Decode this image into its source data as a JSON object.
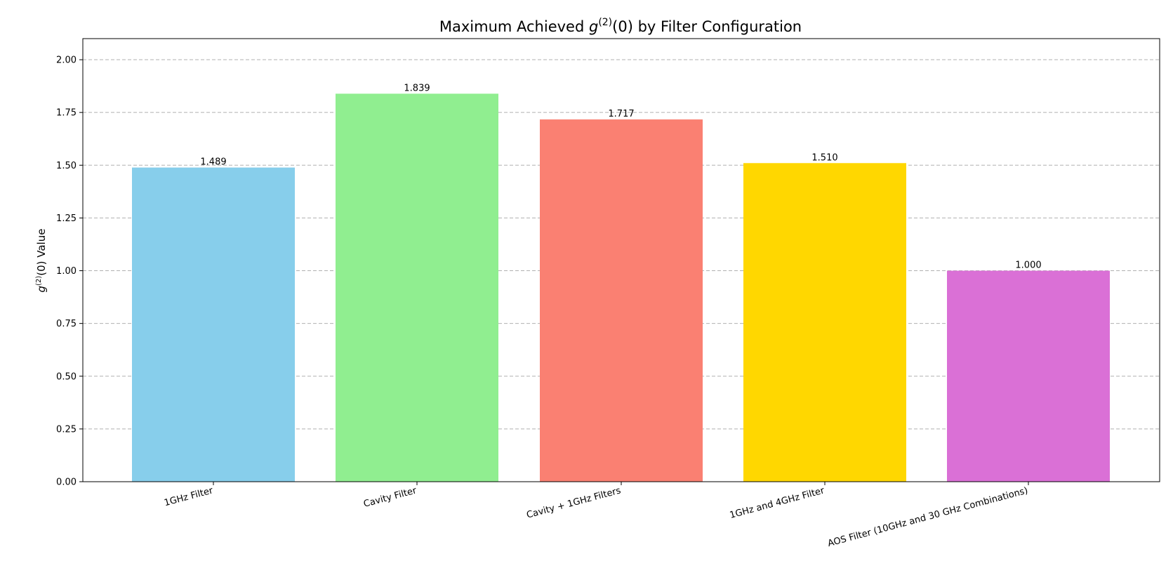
{
  "chart_data": {
    "type": "bar",
    "title": "Maximum Achieved g(2)(0) by Filter Configuration",
    "title_parts": {
      "before": "Maximum Achieved ",
      "sym": "g",
      "sup": "(2)",
      "after": "(0) by Filter Configuration"
    },
    "ylabel": "g(2)(0) Value",
    "ylabel_parts": {
      "sym": "g",
      "sup": "(2)",
      "after": "(0) Value"
    },
    "xlabel": "",
    "categories": [
      "1GHz Filter",
      "Cavity Filter",
      "Cavity + 1GHz Filters",
      "1GHz and 4GHz Filter",
      "AOS Filter (10GHz and 30 GHz Combinations)"
    ],
    "values": [
      1.489,
      1.839,
      1.717,
      1.51,
      1.0
    ],
    "value_labels": [
      "1.489",
      "1.839",
      "1.717",
      "1.510",
      "1.000"
    ],
    "colors": [
      "#87ceeb",
      "#90ee90",
      "#fa8072",
      "#ffd700",
      "#da70d6"
    ],
    "ylim": [
      0,
      2.1
    ],
    "yticks": [
      0,
      0.25,
      0.5,
      0.75,
      1.0,
      1.25,
      1.5,
      1.75,
      2.0
    ],
    "ytick_labels": [
      "0.00",
      "0.25",
      "0.50",
      "0.75",
      "1.00",
      "1.25",
      "1.50",
      "1.75",
      "2.00"
    ],
    "grid": "y-dashed",
    "legend": "none"
  }
}
